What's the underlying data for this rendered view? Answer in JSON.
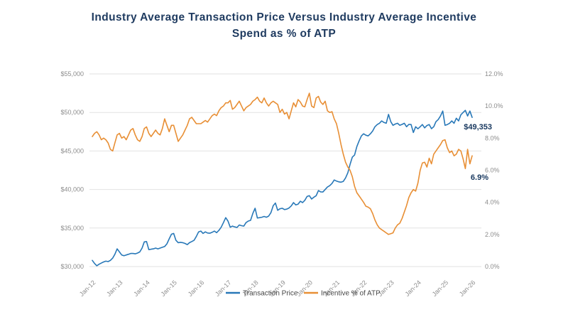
{
  "title": "Industry Average Transaction Price Versus Industry Average Incentive\nSpend as % of ATP",
  "chart_data": {
    "type": "line",
    "title": "Industry Average Transaction Price Versus Industry Average Incentive\nSpend as % of ATP",
    "grid": true,
    "background": "#ffffff",
    "gridline_color": "#e2e2e2",
    "x_tick_labels": [
      "Jan-12",
      "Jan-13",
      "Jan-14",
      "Jan-15",
      "Jan-16",
      "Jan-17",
      "Jan-18",
      "Jan-19",
      "Jan-20",
      "Jan-21",
      "Jan-22",
      "Jan-23",
      "Jan-24",
      "Jan-25",
      "Jan-26"
    ],
    "x_frequency": "monthly",
    "left_axis": {
      "min": 30000,
      "max": 55000,
      "tick_values": [
        55000,
        50000,
        45000,
        40000,
        35000,
        30000
      ],
      "tick_labels": [
        "$55,000",
        "$50,000",
        "$45,000",
        "$40,000",
        "$35,000",
        "$30,000"
      ]
    },
    "right_axis": {
      "min": 0,
      "max": 12,
      "tick_values": [
        12,
        10,
        8,
        6,
        4,
        2,
        0
      ],
      "tick_labels": [
        "12.0%",
        "10.0%",
        "8.0%",
        "6.0%",
        "4.0%",
        "2.0%",
        "0.0%"
      ]
    },
    "series": [
      {
        "name": "Transaction Price",
        "axis": "left",
        "color": "#2878b8",
        "values": [
          30800,
          30400,
          30100,
          30300,
          30450,
          30600,
          30700,
          30650,
          30800,
          31100,
          31600,
          32300,
          31900,
          31500,
          31400,
          31500,
          31600,
          31700,
          31700,
          31650,
          31750,
          31900,
          32400,
          33200,
          33250,
          32200,
          32250,
          32300,
          32400,
          32300,
          32400,
          32500,
          32600,
          32950,
          33600,
          34200,
          34300,
          33400,
          33100,
          33150,
          33100,
          33000,
          32850,
          33100,
          33250,
          33400,
          33900,
          34500,
          34600,
          34300,
          34500,
          34350,
          34330,
          34450,
          34600,
          34400,
          34700,
          35100,
          35700,
          36350,
          35900,
          35100,
          35250,
          35150,
          35070,
          35400,
          35300,
          35250,
          35700,
          35900,
          36000,
          36900,
          37560,
          36300,
          36350,
          36400,
          36500,
          36400,
          36550,
          37000,
          37900,
          38250,
          37300,
          37500,
          37560,
          37400,
          37450,
          37600,
          37870,
          38300,
          38000,
          38100,
          38480,
          38300,
          38600,
          39100,
          39200,
          38760,
          39000,
          39200,
          39860,
          39700,
          39680,
          40000,
          40320,
          40500,
          40780,
          41240,
          41100,
          41000,
          40950,
          41050,
          41500,
          42170,
          43250,
          44200,
          44470,
          45570,
          46310,
          46960,
          47230,
          47050,
          46960,
          47230,
          47600,
          48150,
          48430,
          48600,
          48900,
          48700,
          48600,
          49750,
          48800,
          48330,
          48500,
          48600,
          48330,
          48450,
          48600,
          48150,
          48450,
          48430,
          47400,
          48150,
          47880,
          48150,
          48430,
          48000,
          48300,
          48430,
          47900,
          48150,
          48800,
          49080,
          49540,
          50180,
          48330,
          48430,
          48600,
          48900,
          48600,
          49250,
          48900,
          49700,
          50000,
          50280,
          49540,
          50180,
          49353
        ]
      },
      {
        "name": "Incentive % of ATP",
        "axis": "right",
        "color": "#e88f35",
        "values": [
          8.1,
          8.3,
          8.4,
          8.2,
          7.9,
          8.0,
          7.9,
          7.7,
          7.3,
          7.2,
          7.7,
          8.2,
          8.3,
          8.0,
          8.1,
          7.9,
          8.2,
          8.5,
          8.6,
          8.2,
          7.9,
          7.8,
          8.1,
          8.6,
          8.7,
          8.3,
          8.1,
          8.3,
          8.5,
          8.3,
          8.2,
          8.6,
          9.2,
          8.8,
          8.4,
          8.8,
          8.8,
          8.3,
          7.8,
          8.0,
          8.2,
          8.5,
          8.8,
          9.2,
          9.3,
          9.1,
          8.9,
          8.9,
          8.9,
          9.0,
          9.1,
          9.0,
          9.2,
          9.4,
          9.5,
          9.4,
          9.7,
          9.9,
          10.0,
          10.2,
          10.2,
          10.35,
          9.8,
          9.9,
          10.1,
          10.3,
          10.0,
          9.7,
          9.9,
          10.0,
          10.1,
          10.3,
          10.4,
          10.55,
          10.3,
          10.2,
          10.5,
          10.2,
          10.0,
          10.2,
          10.3,
          10.2,
          10.1,
          9.6,
          9.8,
          9.5,
          9.6,
          9.2,
          9.7,
          10.2,
          9.95,
          10.4,
          10.25,
          10.0,
          9.95,
          10.4,
          10.8,
          10.0,
          9.9,
          10.5,
          10.6,
          10.25,
          10.1,
          10.3,
          9.7,
          9.6,
          9.65,
          9.2,
          8.9,
          8.3,
          7.6,
          7.0,
          6.5,
          6.2,
          6.0,
          5.6,
          5.0,
          4.6,
          4.4,
          4.2,
          4.0,
          3.76,
          3.7,
          3.6,
          3.3,
          2.9,
          2.6,
          2.4,
          2.3,
          2.2,
          2.1,
          2.0,
          2.05,
          2.1,
          2.4,
          2.6,
          2.7,
          3.0,
          3.4,
          3.8,
          4.3,
          4.6,
          4.8,
          4.7,
          5.2,
          6.0,
          6.45,
          6.5,
          6.2,
          6.75,
          6.4,
          7.0,
          7.2,
          7.4,
          7.6,
          7.85,
          7.9,
          7.4,
          7.1,
          7.2,
          6.9,
          7.0,
          7.3,
          7.2,
          6.7,
          6.1,
          7.3,
          6.4,
          6.9
        ]
      }
    ],
    "annotations": [
      {
        "text": "$49,353",
        "series": "Transaction Price",
        "color": "#17375e"
      },
      {
        "text": "6.9%",
        "series": "Incentive % of ATP",
        "color": "#17375e"
      }
    ],
    "legend": {
      "position": "bottom-center",
      "entries": [
        "Transaction Price",
        "Incentive % of ATP"
      ]
    }
  }
}
